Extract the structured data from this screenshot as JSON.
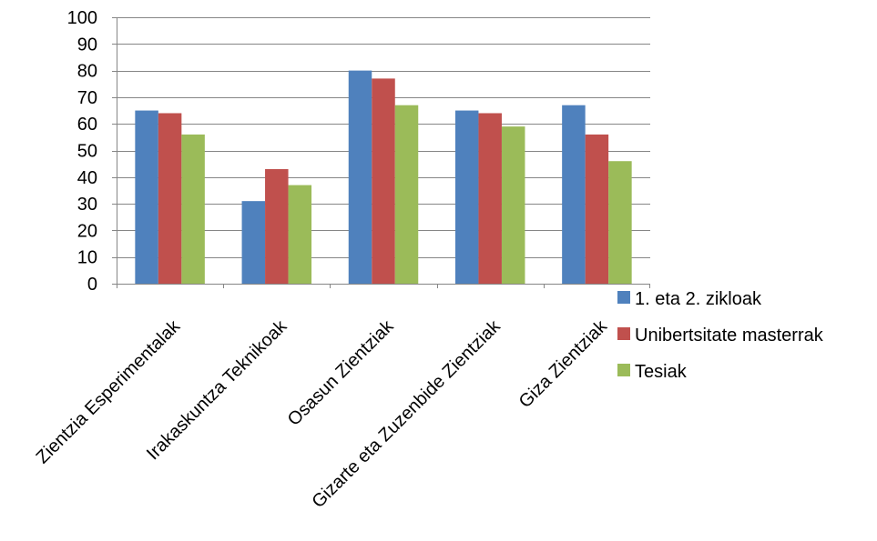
{
  "chart_data": {
    "type": "bar",
    "categories": [
      "Zientzia Esperimentalak",
      "Irakaskuntza Teknikoak",
      "Osasun Zientziak",
      "Gizarte eta Zuzenbide Zientziak",
      "Giza Zientziak"
    ],
    "series": [
      {
        "name": "1. eta 2. zikloak",
        "color": "#4F81BD",
        "values": [
          65,
          31,
          80,
          65,
          67
        ]
      },
      {
        "name": "Unibertsitate masterrak",
        "color": "#C0504D",
        "values": [
          64,
          43,
          77,
          64,
          56
        ]
      },
      {
        "name": "Tesiak",
        "color": "#9BBB59",
        "values": [
          56,
          37,
          67,
          59,
          46
        ]
      }
    ],
    "ylim": [
      0,
      100
    ],
    "yticks": [
      0,
      10,
      20,
      30,
      40,
      50,
      60,
      70,
      80,
      90,
      100
    ],
    "grid": true,
    "legend_position": "right",
    "title": "",
    "xlabel": "",
    "ylabel": ""
  }
}
